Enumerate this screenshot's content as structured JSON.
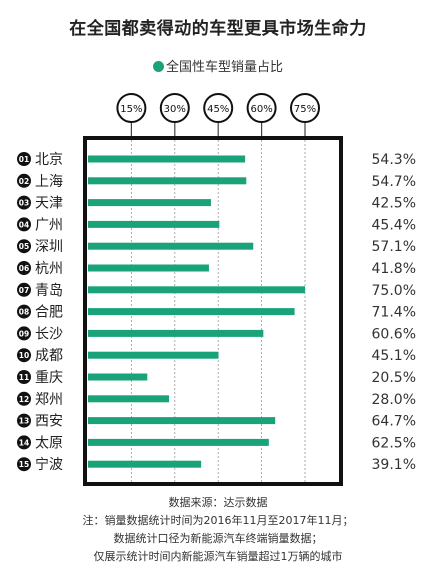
{
  "title": "在全国都卖得动的车型更具市场生命力",
  "chart_data": {
    "type": "bar",
    "orientation": "horizontal",
    "legend": {
      "label": "全国性车型销量占比",
      "color": "#1aa37a",
      "placement": "top-center"
    },
    "reference_ticks": [
      15,
      30,
      45,
      60,
      75
    ],
    "reference_tick_labels": [
      "15%",
      "30%",
      "45%",
      "60%",
      "75%"
    ],
    "xlim": [
      0,
      75
    ],
    "categories": [
      "北京",
      "上海",
      "天津",
      "广州",
      "深圳",
      "杭州",
      "青岛",
      "合肥",
      "长沙",
      "成都",
      "重庆",
      "郑州",
      "西安",
      "太原",
      "宁波"
    ],
    "ranks": [
      "01",
      "02",
      "03",
      "04",
      "05",
      "06",
      "07",
      "08",
      "09",
      "10",
      "11",
      "12",
      "13",
      "14",
      "15"
    ],
    "values": [
      54.3,
      54.7,
      42.5,
      45.4,
      57.1,
      41.8,
      75.0,
      71.4,
      60.6,
      45.1,
      20.5,
      28.0,
      64.7,
      62.5,
      39.1
    ],
    "value_labels": [
      "54.3%",
      "54.7%",
      "42.5%",
      "45.4%",
      "57.1%",
      "41.8%",
      "75.0%",
      "71.4%",
      "60.6%",
      "45.1%",
      "20.5%",
      "28.0%",
      "64.7%",
      "62.5%",
      "39.1%"
    ],
    "grid": true,
    "bar_color": "#1aa37a"
  },
  "footer": {
    "source": "数据来源：达示数据",
    "note1": "注：销量数据统计时间为2016年11月至2017年11月；",
    "note2": "数据统计口径为新能源汽车终端销量数据；",
    "note3": "仅展示统计时间内新能源汽车销量超过1万辆的城市"
  }
}
